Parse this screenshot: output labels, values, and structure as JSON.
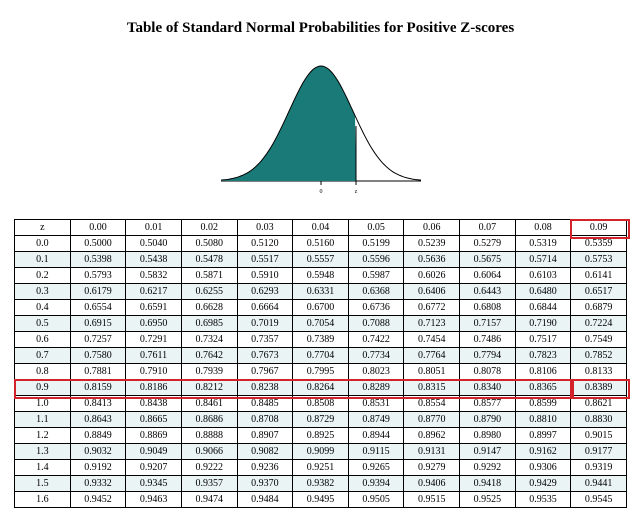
{
  "title": "Table of Standard Normal Probabilities for Positive Z-scores",
  "title_fontsize": 15,
  "curve": {
    "fill_color": "#1a7a78",
    "stroke_color": "#000000",
    "background_color": "#ffffff",
    "axis_labels": {
      "center": "0",
      "z": "z"
    },
    "axis_label_fontsize": 6
  },
  "highlight": {
    "color": "#d2232a",
    "header_col_index": 10,
    "row_index": 9,
    "cell_col_index": 10
  },
  "table": {
    "row_shade_color": "#eaf4f4",
    "border_color": "#000000",
    "font_size": 10,
    "n_cols": 11,
    "columns": [
      "z",
      "0.00",
      "0.01",
      "0.02",
      "0.03",
      "0.04",
      "0.05",
      "0.06",
      "0.07",
      "0.08",
      "0.09"
    ],
    "rows": [
      {
        "z": "0.0",
        "v": [
          "0.5000",
          "0.5040",
          "0.5080",
          "0.5120",
          "0.5160",
          "0.5199",
          "0.5239",
          "0.5279",
          "0.5319",
          "0.5359"
        ],
        "shade": false
      },
      {
        "z": "0.1",
        "v": [
          "0.5398",
          "0.5438",
          "0.5478",
          "0.5517",
          "0.5557",
          "0.5596",
          "0.5636",
          "0.5675",
          "0.5714",
          "0.5753"
        ],
        "shade": true
      },
      {
        "z": "0.2",
        "v": [
          "0.5793",
          "0.5832",
          "0.5871",
          "0.5910",
          "0.5948",
          "0.5987",
          "0.6026",
          "0.6064",
          "0.6103",
          "0.6141"
        ],
        "shade": false
      },
      {
        "z": "0.3",
        "v": [
          "0.6179",
          "0.6217",
          "0.6255",
          "0.6293",
          "0.6331",
          "0.6368",
          "0.6406",
          "0.6443",
          "0.6480",
          "0.6517"
        ],
        "shade": true
      },
      {
        "z": "0.4",
        "v": [
          "0.6554",
          "0.6591",
          "0.6628",
          "0.6664",
          "0.6700",
          "0.6736",
          "0.6772",
          "0.6808",
          "0.6844",
          "0.6879"
        ],
        "shade": false
      },
      {
        "z": "0.5",
        "v": [
          "0.6915",
          "0.6950",
          "0.6985",
          "0.7019",
          "0.7054",
          "0.7088",
          "0.7123",
          "0.7157",
          "0.7190",
          "0.7224"
        ],
        "shade": true
      },
      {
        "z": "0.6",
        "v": [
          "0.7257",
          "0.7291",
          "0.7324",
          "0.7357",
          "0.7389",
          "0.7422",
          "0.7454",
          "0.7486",
          "0.7517",
          "0.7549"
        ],
        "shade": false
      },
      {
        "z": "0.7",
        "v": [
          "0.7580",
          "0.7611",
          "0.7642",
          "0.7673",
          "0.7704",
          "0.7734",
          "0.7764",
          "0.7794",
          "0.7823",
          "0.7852"
        ],
        "shade": true
      },
      {
        "z": "0.8",
        "v": [
          "0.7881",
          "0.7910",
          "0.7939",
          "0.7967",
          "0.7995",
          "0.8023",
          "0.8051",
          "0.8078",
          "0.8106",
          "0.8133"
        ],
        "shade": false
      },
      {
        "z": "0.9",
        "v": [
          "0.8159",
          "0.8186",
          "0.8212",
          "0.8238",
          "0.8264",
          "0.8289",
          "0.8315",
          "0.8340",
          "0.8365",
          "0.8389"
        ],
        "shade": true
      },
      {
        "z": "1.0",
        "v": [
          "0.8413",
          "0.8438",
          "0.8461",
          "0.8485",
          "0.8508",
          "0.8531",
          "0.8554",
          "0.8577",
          "0.8599",
          "0.8621"
        ],
        "shade": false
      },
      {
        "z": "1.1",
        "v": [
          "0.8643",
          "0.8665",
          "0.8686",
          "0.8708",
          "0.8729",
          "0.8749",
          "0.8770",
          "0.8790",
          "0.8810",
          "0.8830"
        ],
        "shade": true
      },
      {
        "z": "1.2",
        "v": [
          "0.8849",
          "0.8869",
          "0.8888",
          "0.8907",
          "0.8925",
          "0.8944",
          "0.8962",
          "0.8980",
          "0.8997",
          "0.9015"
        ],
        "shade": false
      },
      {
        "z": "1.3",
        "v": [
          "0.9032",
          "0.9049",
          "0.9066",
          "0.9082",
          "0.9099",
          "0.9115",
          "0.9131",
          "0.9147",
          "0.9162",
          "0.9177"
        ],
        "shade": true
      },
      {
        "z": "1.4",
        "v": [
          "0.9192",
          "0.9207",
          "0.9222",
          "0.9236",
          "0.9251",
          "0.9265",
          "0.9279",
          "0.9292",
          "0.9306",
          "0.9319"
        ],
        "shade": false
      },
      {
        "z": "1.5",
        "v": [
          "0.9332",
          "0.9345",
          "0.9357",
          "0.9370",
          "0.9382",
          "0.9394",
          "0.9406",
          "0.9418",
          "0.9429",
          "0.9441"
        ],
        "shade": true
      },
      {
        "z": "1.6",
        "v": [
          "0.9452",
          "0.9463",
          "0.9474",
          "0.9484",
          "0.9495",
          "0.9505",
          "0.9515",
          "0.9525",
          "0.9535",
          "0.9545"
        ],
        "shade": false
      }
    ]
  }
}
